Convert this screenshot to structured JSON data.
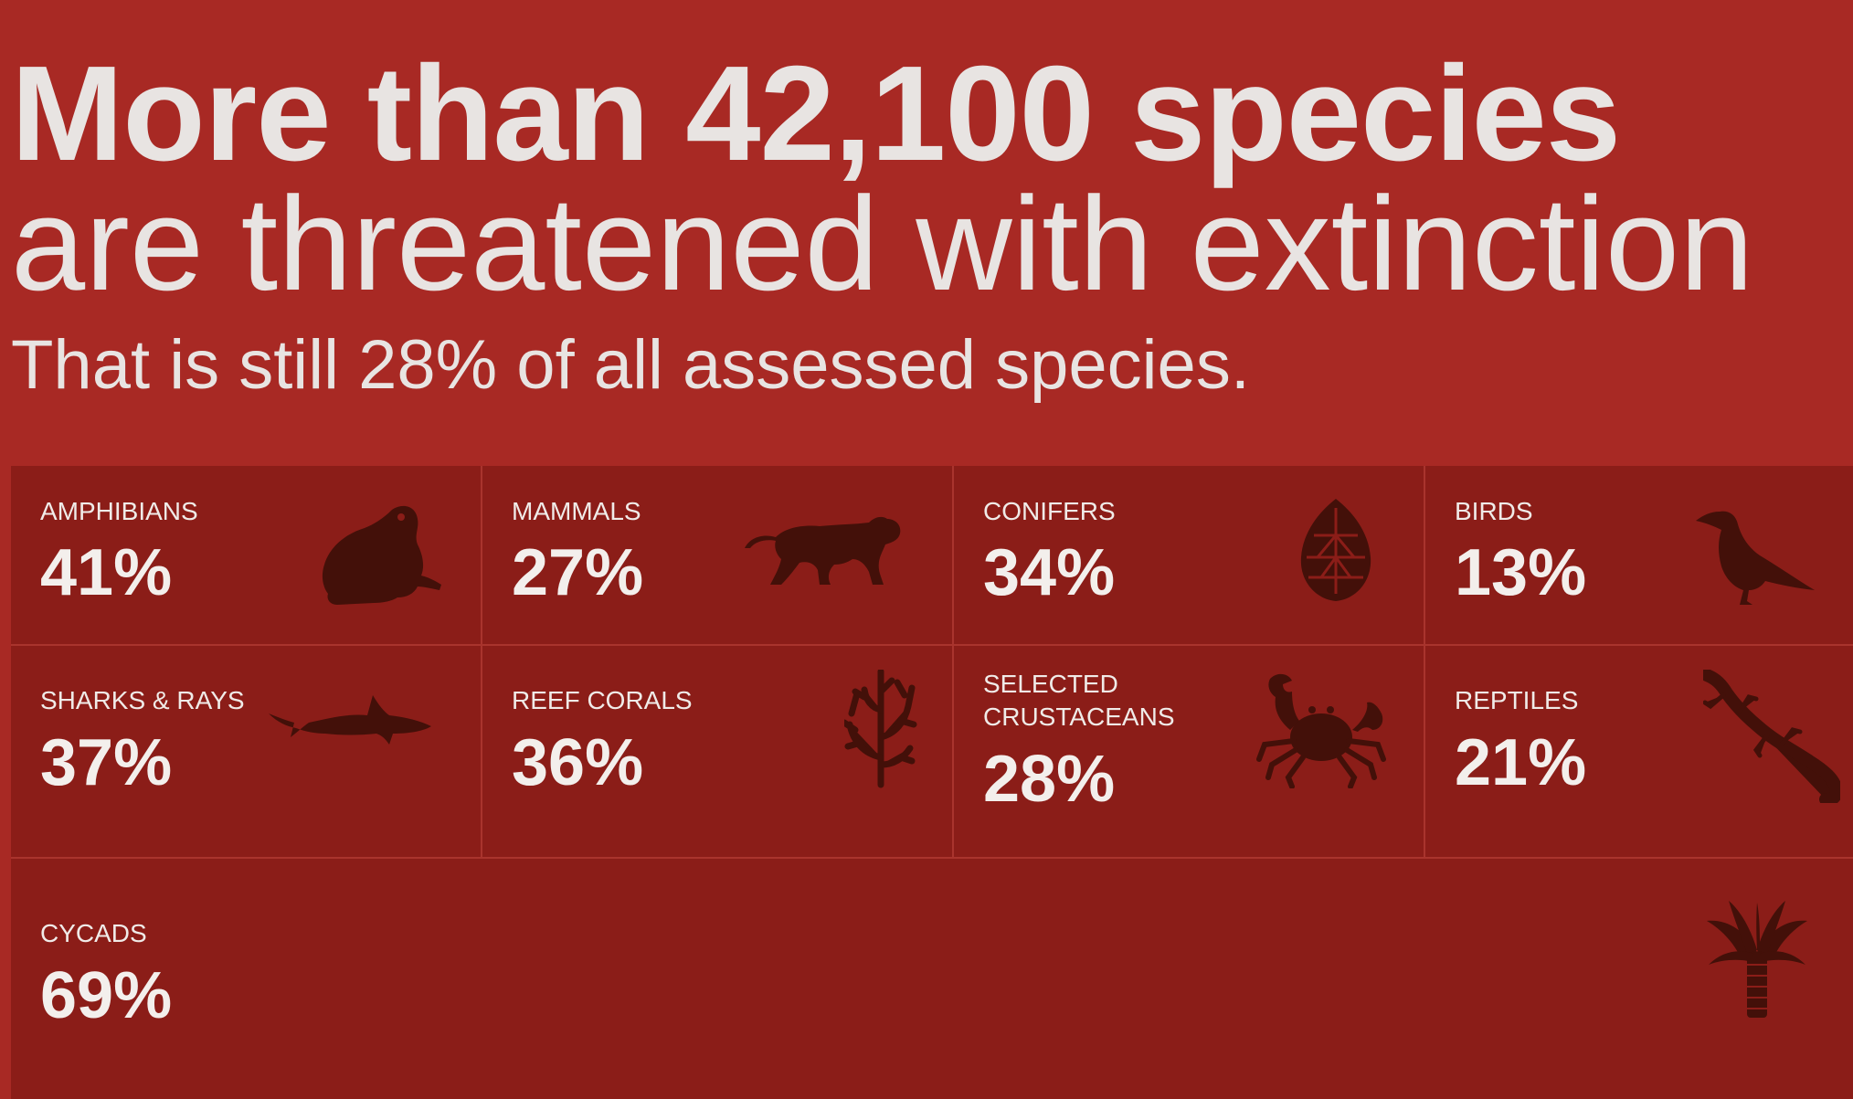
{
  "headline": {
    "bold": "More than 42,100 species",
    "regular": "are threatened with extinction"
  },
  "subtitle": "That is still 28% of all assessed species.",
  "icon_color": "#431009",
  "background_color": "#a82924",
  "tile_color": "#8b1d18",
  "categories": [
    {
      "label": "AMPHIBIANS",
      "percent": "41%",
      "icon": "frog-icon"
    },
    {
      "label": "MAMMALS",
      "percent": "27%",
      "icon": "tiger-icon"
    },
    {
      "label": "CONIFERS",
      "percent": "34%",
      "icon": "pine-cone-icon"
    },
    {
      "label": "BIRDS",
      "percent": "13%",
      "icon": "crow-icon"
    },
    {
      "label": "SHARKS & RAYS",
      "percent": "37%",
      "icon": "shark-icon"
    },
    {
      "label": "REEF CORALS",
      "percent": "36%",
      "icon": "coral-icon"
    },
    {
      "label": "SELECTED CRUSTACEANS",
      "percent": "28%",
      "icon": "crab-icon"
    },
    {
      "label": "REPTILES",
      "percent": "21%",
      "icon": "lizard-icon"
    },
    {
      "label": "CYCADS",
      "percent": "69%",
      "icon": "palm-icon"
    }
  ]
}
